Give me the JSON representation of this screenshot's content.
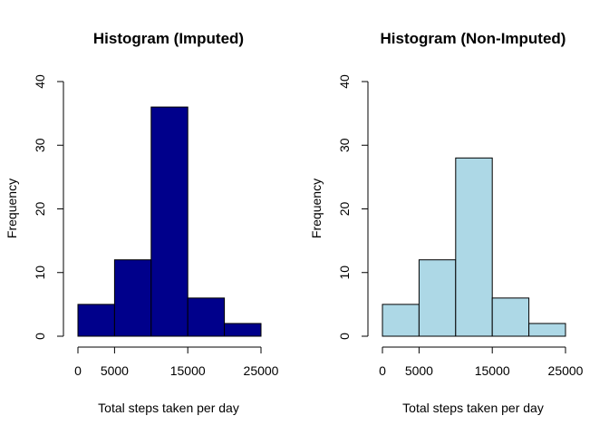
{
  "chart_data": [
    {
      "type": "bar",
      "title": "Histogram (Imputed)",
      "xlabel": "Total steps taken per day",
      "ylabel": "Frequency",
      "bins": [
        {
          "from": 0,
          "to": 5000,
          "value": 5
        },
        {
          "from": 5000,
          "to": 10000,
          "value": 12
        },
        {
          "from": 10000,
          "to": 15000,
          "value": 36
        },
        {
          "from": 15000,
          "to": 20000,
          "value": 6
        },
        {
          "from": 20000,
          "to": 25000,
          "value": 2
        }
      ],
      "xlim": [
        0,
        25000
      ],
      "ylim": [
        0,
        40
      ],
      "x_ticks": [
        0,
        5000,
        15000,
        25000
      ],
      "x_tick_labels": [
        "0",
        "5000",
        "15000",
        "25000"
      ],
      "y_ticks": [
        0,
        10,
        20,
        30,
        40
      ],
      "y_tick_labels": [
        "0",
        "10",
        "20",
        "30",
        "40"
      ],
      "bar_color": "#00008B",
      "grid": false
    },
    {
      "type": "bar",
      "title": "Histogram (Non-Imputed)",
      "xlabel": "Total steps taken per day",
      "ylabel": "Frequency",
      "bins": [
        {
          "from": 0,
          "to": 5000,
          "value": 5
        },
        {
          "from": 5000,
          "to": 10000,
          "value": 12
        },
        {
          "from": 10000,
          "to": 15000,
          "value": 28
        },
        {
          "from": 15000,
          "to": 20000,
          "value": 6
        },
        {
          "from": 20000,
          "to": 25000,
          "value": 2
        }
      ],
      "xlim": [
        0,
        25000
      ],
      "ylim": [
        0,
        40
      ],
      "x_ticks": [
        0,
        5000,
        15000,
        25000
      ],
      "x_tick_labels": [
        "0",
        "5000",
        "15000",
        "25000"
      ],
      "y_ticks": [
        0,
        10,
        20,
        30,
        40
      ],
      "y_tick_labels": [
        "0",
        "10",
        "20",
        "30",
        "40"
      ],
      "bar_color": "#ADD8E6",
      "grid": false
    }
  ]
}
